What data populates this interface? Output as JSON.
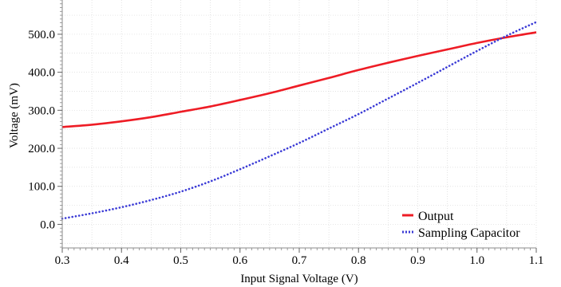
{
  "chart_data": {
    "type": "line",
    "xlabel": "Input Signal Voltage (V)",
    "ylabel": "Voltage (mV)",
    "xlim": [
      0.3,
      1.1
    ],
    "ylim": [
      -62,
      590
    ],
    "x_ticks": [
      0.3,
      0.4,
      0.5,
      0.6,
      0.7,
      0.8,
      0.9,
      1.0,
      1.1
    ],
    "x_tick_labels": [
      "0.3",
      "0.4",
      "0.5",
      "0.6",
      "0.7",
      "0.8",
      "0.9",
      "1.0",
      "1.1"
    ],
    "y_ticks": [
      0,
      100,
      200,
      300,
      400,
      500
    ],
    "y_tick_labels": [
      "0.0",
      "100.0",
      "200.0",
      "300.0",
      "400.0",
      "500.0"
    ],
    "grid": true,
    "legend_position": "bottom-right",
    "series": [
      {
        "name": "Output",
        "color": "#ee1c25",
        "style": "solid",
        "x": [
          0.3,
          0.35,
          0.4,
          0.45,
          0.5,
          0.55,
          0.6,
          0.65,
          0.7,
          0.75,
          0.8,
          0.85,
          0.9,
          0.95,
          1.0,
          1.05,
          1.1
        ],
        "y": [
          256,
          262,
          271,
          282,
          296,
          310,
          327,
          345,
          365,
          385,
          406,
          425,
          443,
          460,
          477,
          492,
          505
        ]
      },
      {
        "name": "Sampling Capacitor",
        "color": "#3b3bd6",
        "style": "dotted",
        "x": [
          0.3,
          0.35,
          0.4,
          0.45,
          0.5,
          0.55,
          0.6,
          0.65,
          0.7,
          0.75,
          0.8,
          0.85,
          0.9,
          0.95,
          1.0,
          1.05,
          1.1
        ],
        "y": [
          15,
          29,
          45,
          64,
          86,
          113,
          145,
          179,
          214,
          252,
          290,
          331,
          372,
          414,
          456,
          496,
          532
        ]
      }
    ]
  }
}
